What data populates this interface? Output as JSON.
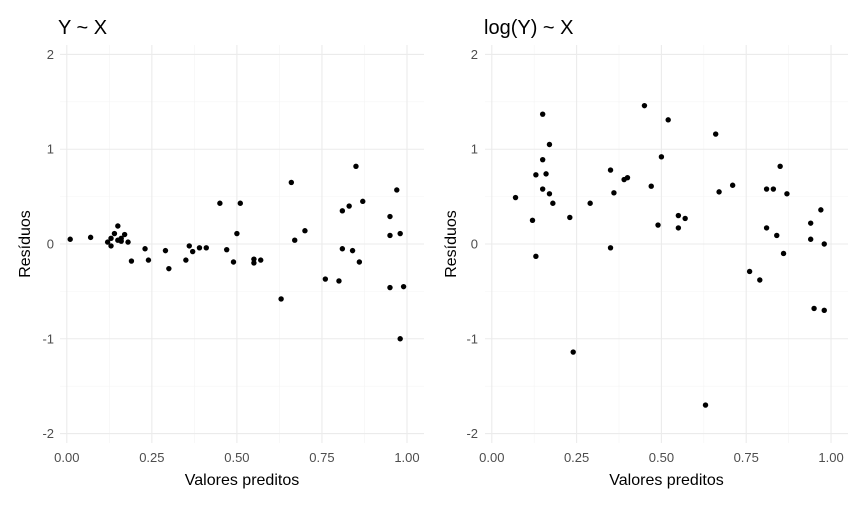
{
  "chart_data": [
    {
      "type": "scatter",
      "title": "Y ~ X",
      "xlabel": "Valores preditos",
      "ylabel": "Resíduos",
      "xlim": [
        -0.02,
        1.05
      ],
      "ylim": [
        -2.1,
        2.1
      ],
      "x_ticks": [
        0,
        0.25,
        0.5,
        0.75,
        1
      ],
      "x_tick_labels": [
        "0.00",
        "0.25",
        "0.50",
        "0.75",
        "1.00"
      ],
      "y_ticks": [
        -2,
        -1,
        0,
        1,
        2
      ],
      "y_tick_labels": [
        "-2",
        "-1",
        "0",
        "1",
        "2"
      ],
      "grid": true,
      "point_color": "#000000",
      "points": [
        {
          "x": 0.01,
          "y": 0.05
        },
        {
          "x": 0.07,
          "y": 0.07
        },
        {
          "x": 0.12,
          "y": 0.02
        },
        {
          "x": 0.13,
          "y": 0.06
        },
        {
          "x": 0.13,
          "y": -0.02
        },
        {
          "x": 0.14,
          "y": 0.11
        },
        {
          "x": 0.15,
          "y": 0.19
        },
        {
          "x": 0.15,
          "y": 0.04
        },
        {
          "x": 0.16,
          "y": 0.06
        },
        {
          "x": 0.16,
          "y": 0.03
        },
        {
          "x": 0.17,
          "y": 0.1
        },
        {
          "x": 0.18,
          "y": 0.02
        },
        {
          "x": 0.19,
          "y": -0.18
        },
        {
          "x": 0.23,
          "y": -0.05
        },
        {
          "x": 0.24,
          "y": -0.17
        },
        {
          "x": 0.29,
          "y": -0.07
        },
        {
          "x": 0.3,
          "y": -0.26
        },
        {
          "x": 0.35,
          "y": -0.17
        },
        {
          "x": 0.36,
          "y": -0.02
        },
        {
          "x": 0.37,
          "y": -0.08
        },
        {
          "x": 0.39,
          "y": -0.04
        },
        {
          "x": 0.41,
          "y": -0.04
        },
        {
          "x": 0.45,
          "y": 0.43
        },
        {
          "x": 0.47,
          "y": -0.06
        },
        {
          "x": 0.49,
          "y": -0.19
        },
        {
          "x": 0.5,
          "y": 0.11
        },
        {
          "x": 0.51,
          "y": 0.43
        },
        {
          "x": 0.55,
          "y": -0.2
        },
        {
          "x": 0.55,
          "y": -0.16
        },
        {
          "x": 0.57,
          "y": -0.17
        },
        {
          "x": 0.63,
          "y": -0.58
        },
        {
          "x": 0.66,
          "y": 0.65
        },
        {
          "x": 0.67,
          "y": 0.04
        },
        {
          "x": 0.7,
          "y": 0.14
        },
        {
          "x": 0.76,
          "y": -0.37
        },
        {
          "x": 0.8,
          "y": -0.39
        },
        {
          "x": 0.81,
          "y": 0.35
        },
        {
          "x": 0.81,
          "y": -0.05
        },
        {
          "x": 0.83,
          "y": 0.4
        },
        {
          "x": 0.84,
          "y": -0.07
        },
        {
          "x": 0.85,
          "y": 0.82
        },
        {
          "x": 0.86,
          "y": -0.19
        },
        {
          "x": 0.87,
          "y": 0.45
        },
        {
          "x": 0.95,
          "y": 0.29
        },
        {
          "x": 0.95,
          "y": 0.09
        },
        {
          "x": 0.95,
          "y": -0.46
        },
        {
          "x": 0.97,
          "y": 0.57
        },
        {
          "x": 0.98,
          "y": 0.11
        },
        {
          "x": 0.98,
          "y": -1.0
        },
        {
          "x": 0.99,
          "y": -0.45
        }
      ]
    },
    {
      "type": "scatter",
      "title": "log(Y) ~ X",
      "xlabel": "Valores preditos",
      "ylabel": "Resíduos",
      "xlim": [
        -0.02,
        1.05
      ],
      "ylim": [
        -2.1,
        2.1
      ],
      "x_ticks": [
        0,
        0.25,
        0.5,
        0.75,
        1
      ],
      "x_tick_labels": [
        "0.00",
        "0.25",
        "0.50",
        "0.75",
        "1.00"
      ],
      "y_ticks": [
        -2,
        -1,
        0,
        1,
        2
      ],
      "y_tick_labels": [
        "-2",
        "-1",
        "0",
        "1",
        "2"
      ],
      "grid": true,
      "point_color": "#000000",
      "points": [
        {
          "x": 0.07,
          "y": 0.49
        },
        {
          "x": 0.12,
          "y": 0.25
        },
        {
          "x": 0.13,
          "y": 0.73
        },
        {
          "x": 0.13,
          "y": -0.13
        },
        {
          "x": 0.15,
          "y": 0.89
        },
        {
          "x": 0.15,
          "y": 0.58
        },
        {
          "x": 0.15,
          "y": 1.37
        },
        {
          "x": 0.16,
          "y": 0.74
        },
        {
          "x": 0.17,
          "y": 1.05
        },
        {
          "x": 0.17,
          "y": 0.53
        },
        {
          "x": 0.18,
          "y": 0.43
        },
        {
          "x": 0.23,
          "y": 0.28
        },
        {
          "x": 0.24,
          "y": -1.14
        },
        {
          "x": 0.29,
          "y": 0.43
        },
        {
          "x": 0.35,
          "y": 0.78
        },
        {
          "x": 0.35,
          "y": -0.04
        },
        {
          "x": 0.36,
          "y": 0.54
        },
        {
          "x": 0.39,
          "y": 0.68
        },
        {
          "x": 0.4,
          "y": 0.7
        },
        {
          "x": 0.45,
          "y": 1.46
        },
        {
          "x": 0.47,
          "y": 0.61
        },
        {
          "x": 0.49,
          "y": 0.2
        },
        {
          "x": 0.5,
          "y": 0.92
        },
        {
          "x": 0.52,
          "y": 1.31
        },
        {
          "x": 0.55,
          "y": 0.3
        },
        {
          "x": 0.55,
          "y": 0.17
        },
        {
          "x": 0.57,
          "y": 0.27
        },
        {
          "x": 0.63,
          "y": -1.7
        },
        {
          "x": 0.66,
          "y": 1.16
        },
        {
          "x": 0.67,
          "y": 0.55
        },
        {
          "x": 0.71,
          "y": 0.62
        },
        {
          "x": 0.76,
          "y": -0.29
        },
        {
          "x": 0.79,
          "y": -0.38
        },
        {
          "x": 0.81,
          "y": 0.58
        },
        {
          "x": 0.81,
          "y": 0.17
        },
        {
          "x": 0.83,
          "y": 0.58
        },
        {
          "x": 0.84,
          "y": 0.09
        },
        {
          "x": 0.85,
          "y": 0.82
        },
        {
          "x": 0.86,
          "y": -0.1
        },
        {
          "x": 0.87,
          "y": 0.53
        },
        {
          "x": 0.94,
          "y": 0.22
        },
        {
          "x": 0.94,
          "y": 0.05
        },
        {
          "x": 0.95,
          "y": -0.68
        },
        {
          "x": 0.97,
          "y": 0.36
        },
        {
          "x": 0.98,
          "y": 0.0
        },
        {
          "x": 0.98,
          "y": -0.7
        }
      ]
    }
  ]
}
